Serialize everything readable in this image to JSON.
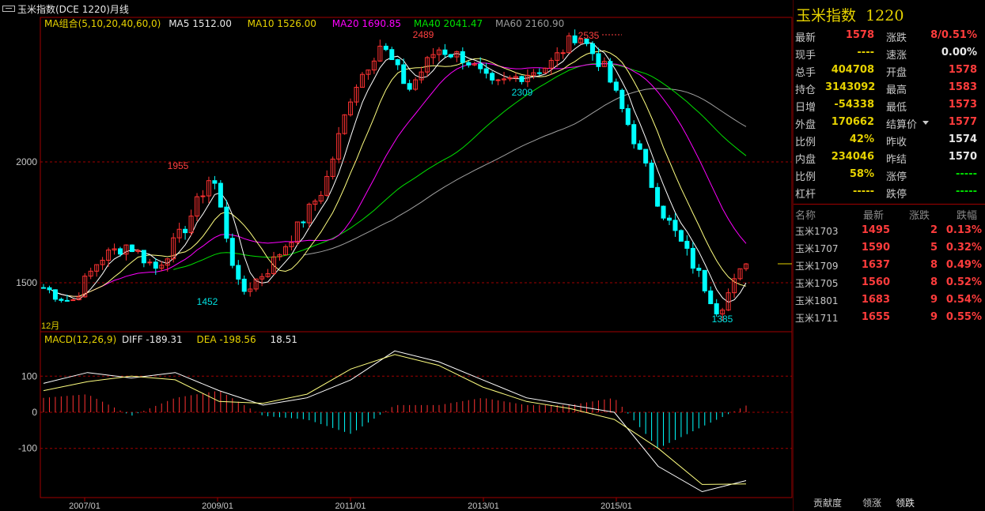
{
  "window": {
    "title": "玉米指数(DCE 1220)月线"
  },
  "legend": {
    "ma_group": "MA组合(5,10,20,40,60,0)",
    "ma5": "MA5 1512.00",
    "ma10": "MA10 1526.00",
    "ma20": "MA20 1690.85",
    "ma40": "MA40 2041.47",
    "ma60": "MA60 2160.90",
    "macd": "MACD(12,26,9)",
    "diff": "DIFF -189.31",
    "dea": "DEA -198.56",
    "macd_value": "18.51"
  },
  "colors": {
    "up": "#ff3232",
    "down": "#00ffff",
    "ma5": "#ffffff",
    "ma10": "#ffff80",
    "ma20": "#ff00ff",
    "ma40": "#00e000",
    "ma60": "#a0a0a0",
    "grid": "#a00000"
  },
  "chart_data": {
    "type": "candlestick",
    "title": "玉米指数(DCE 1220)月线",
    "price_ticks": [
      "2000",
      "1500"
    ],
    "macd_ticks": [
      "100",
      "0",
      "-100"
    ],
    "date_ticks": [
      "2007/01",
      "2009/01",
      "2011/01",
      "2013/01",
      "2015/01"
    ],
    "start_label": "12月",
    "annotations": [
      {
        "label": "1955",
        "type": "high"
      },
      {
        "label": "1452",
        "type": "low"
      },
      {
        "label": "2489",
        "type": "high"
      },
      {
        "label": "2309",
        "type": "low"
      },
      {
        "label": "2535",
        "type": "high"
      },
      {
        "label": "1385",
        "type": "low"
      }
    ],
    "keypoints_price": [
      1480,
      1420,
      1600,
      1660,
      1560,
      1720,
      1955,
      1452,
      1560,
      1720,
      1900,
      2300,
      2489,
      2300,
      2470,
      2430,
      2309,
      2360,
      2400,
      2535,
      2380,
      2100,
      1800,
      1600,
      1385,
      1578
    ],
    "diff": [
      80,
      110,
      95,
      110,
      60,
      20,
      40,
      90,
      170,
      140,
      90,
      40,
      20,
      0,
      -150,
      -220,
      -189.31
    ],
    "dea": [
      60,
      85,
      100,
      90,
      30,
      25,
      50,
      120,
      160,
      130,
      70,
      30,
      10,
      -20,
      -100,
      -200,
      -198.56
    ]
  },
  "quote": {
    "symbol": "玉米指数",
    "code": "1220",
    "rows": [
      {
        "l1": "最新",
        "v1": "1578",
        "c1": "r",
        "l2": "涨跌",
        "v2": "8/0.51%",
        "c2": "r"
      },
      {
        "l1": "现手",
        "v1": "----",
        "c1": "y",
        "l2": "速涨",
        "v2": "0.00%",
        "c2": "w"
      },
      {
        "l1": "总手",
        "v1": "404708",
        "c1": "y",
        "l2": "开盘",
        "v2": "1578",
        "c2": "r"
      },
      {
        "l1": "持仓",
        "v1": "3143092",
        "c1": "y",
        "l2": "最高",
        "v2": "1583",
        "c2": "r"
      },
      {
        "l1": "日增",
        "v1": "-54338",
        "c1": "y",
        "l2": "最低",
        "v2": "1573",
        "c2": "r"
      },
      {
        "l1": "外盘",
        "v1": "170662",
        "c1": "y",
        "l2": "结算价",
        "v2": "1577",
        "c2": "r"
      },
      {
        "l1": "比例",
        "v1": "42%",
        "c1": "y",
        "l2": "昨收",
        "v2": "1574",
        "c2": "w"
      },
      {
        "l1": "内盘",
        "v1": "234046",
        "c1": "y",
        "l2": "昨结",
        "v2": "1570",
        "c2": "w"
      },
      {
        "l1": "比例",
        "v1": "58%",
        "c1": "y",
        "l2": "涨停",
        "v2": "-----",
        "c2": "g"
      },
      {
        "l1": "杠杆",
        "v1": "-----",
        "c1": "y",
        "l2": "跌停",
        "v2": "-----",
        "c2": "g"
      }
    ]
  },
  "contracts": {
    "headers": [
      "名称",
      "最新",
      "涨跌",
      "跌幅"
    ],
    "rows": [
      {
        "name": "玉米1703",
        "last": "1495",
        "chg": "2",
        "pct": "0.13%"
      },
      {
        "name": "玉米1707",
        "last": "1590",
        "chg": "5",
        "pct": "0.32%"
      },
      {
        "name": "玉米1709",
        "last": "1637",
        "chg": "8",
        "pct": "0.49%"
      },
      {
        "name": "玉米1705",
        "last": "1560",
        "chg": "8",
        "pct": "0.52%"
      },
      {
        "name": "玉米1801",
        "last": "1683",
        "chg": "9",
        "pct": "0.54%"
      },
      {
        "name": "玉米1711",
        "last": "1655",
        "chg": "9",
        "pct": "0.55%"
      }
    ]
  },
  "tabs": [
    "贡献度",
    "领涨",
    "领跌"
  ]
}
